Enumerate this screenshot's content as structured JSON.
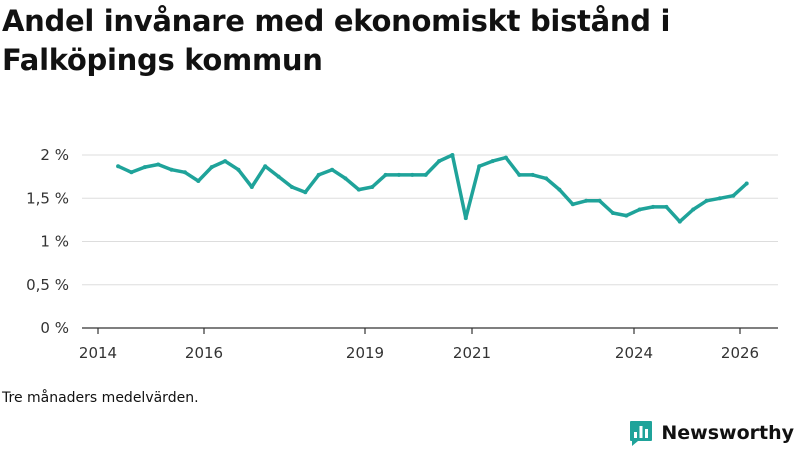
{
  "chart_data": {
    "type": "line",
    "title": "Andel invånare med ekonomiskt bistånd i Falköpings kommun",
    "xlabel": "",
    "ylabel": "",
    "x_ticks": [
      2014,
      2016,
      2019,
      2021,
      2024,
      2026
    ],
    "x_range": [
      2014,
      2026.7
    ],
    "ylim": [
      0,
      2.1
    ],
    "y_ticks": [
      0,
      0.5,
      1,
      1.5,
      2
    ],
    "y_tick_labels": [
      "0 %",
      "0,5 %",
      "1 %",
      "1,5 %",
      "2 %"
    ],
    "grid": true,
    "series": [
      {
        "name": "Andel invånare med ekonomiskt bistånd",
        "color": "#1fa39a",
        "x": [
          2014.375,
          2014.625,
          2014.875,
          2015.125,
          2015.375,
          2015.625,
          2015.875,
          2016.125,
          2016.375,
          2016.625,
          2016.875,
          2017.125,
          2017.375,
          2017.625,
          2017.875,
          2018.125,
          2018.375,
          2018.625,
          2018.875,
          2019.125,
          2019.375,
          2019.625,
          2019.875,
          2020.125,
          2020.375,
          2020.625,
          2020.875,
          2021.125,
          2021.375,
          2021.625,
          2021.875,
          2022.125,
          2022.375,
          2022.625,
          2022.875,
          2023.125,
          2023.375,
          2023.625,
          2023.875,
          2024.125,
          2024.375,
          2024.625,
          2024.875,
          2025.125,
          2025.375,
          2025.625,
          2025.875,
          2026.125
        ],
        "values": [
          1.87,
          1.8,
          1.86,
          1.89,
          1.83,
          1.8,
          1.7,
          1.86,
          1.93,
          1.83,
          1.63,
          1.87,
          1.75,
          1.63,
          1.57,
          1.77,
          1.83,
          1.73,
          1.6,
          1.63,
          1.77,
          1.77,
          1.77,
          1.77,
          1.93,
          2.0,
          1.27,
          1.87,
          1.93,
          1.97,
          1.77,
          1.77,
          1.73,
          1.6,
          1.43,
          1.47,
          1.47,
          1.33,
          1.3,
          1.37,
          1.4,
          1.4,
          1.23,
          1.37,
          1.47,
          1.5,
          1.53,
          1.67
        ]
      }
    ]
  },
  "footer": {
    "note": "Tre månaders medelvärden.",
    "brand": "Newsworthy",
    "brand_icon": "newsworthy-logo-icon"
  },
  "colors": {
    "line": "#1fa39a",
    "brand": "#1fa39a",
    "grid": "#dddddd",
    "axis": "#333333"
  }
}
